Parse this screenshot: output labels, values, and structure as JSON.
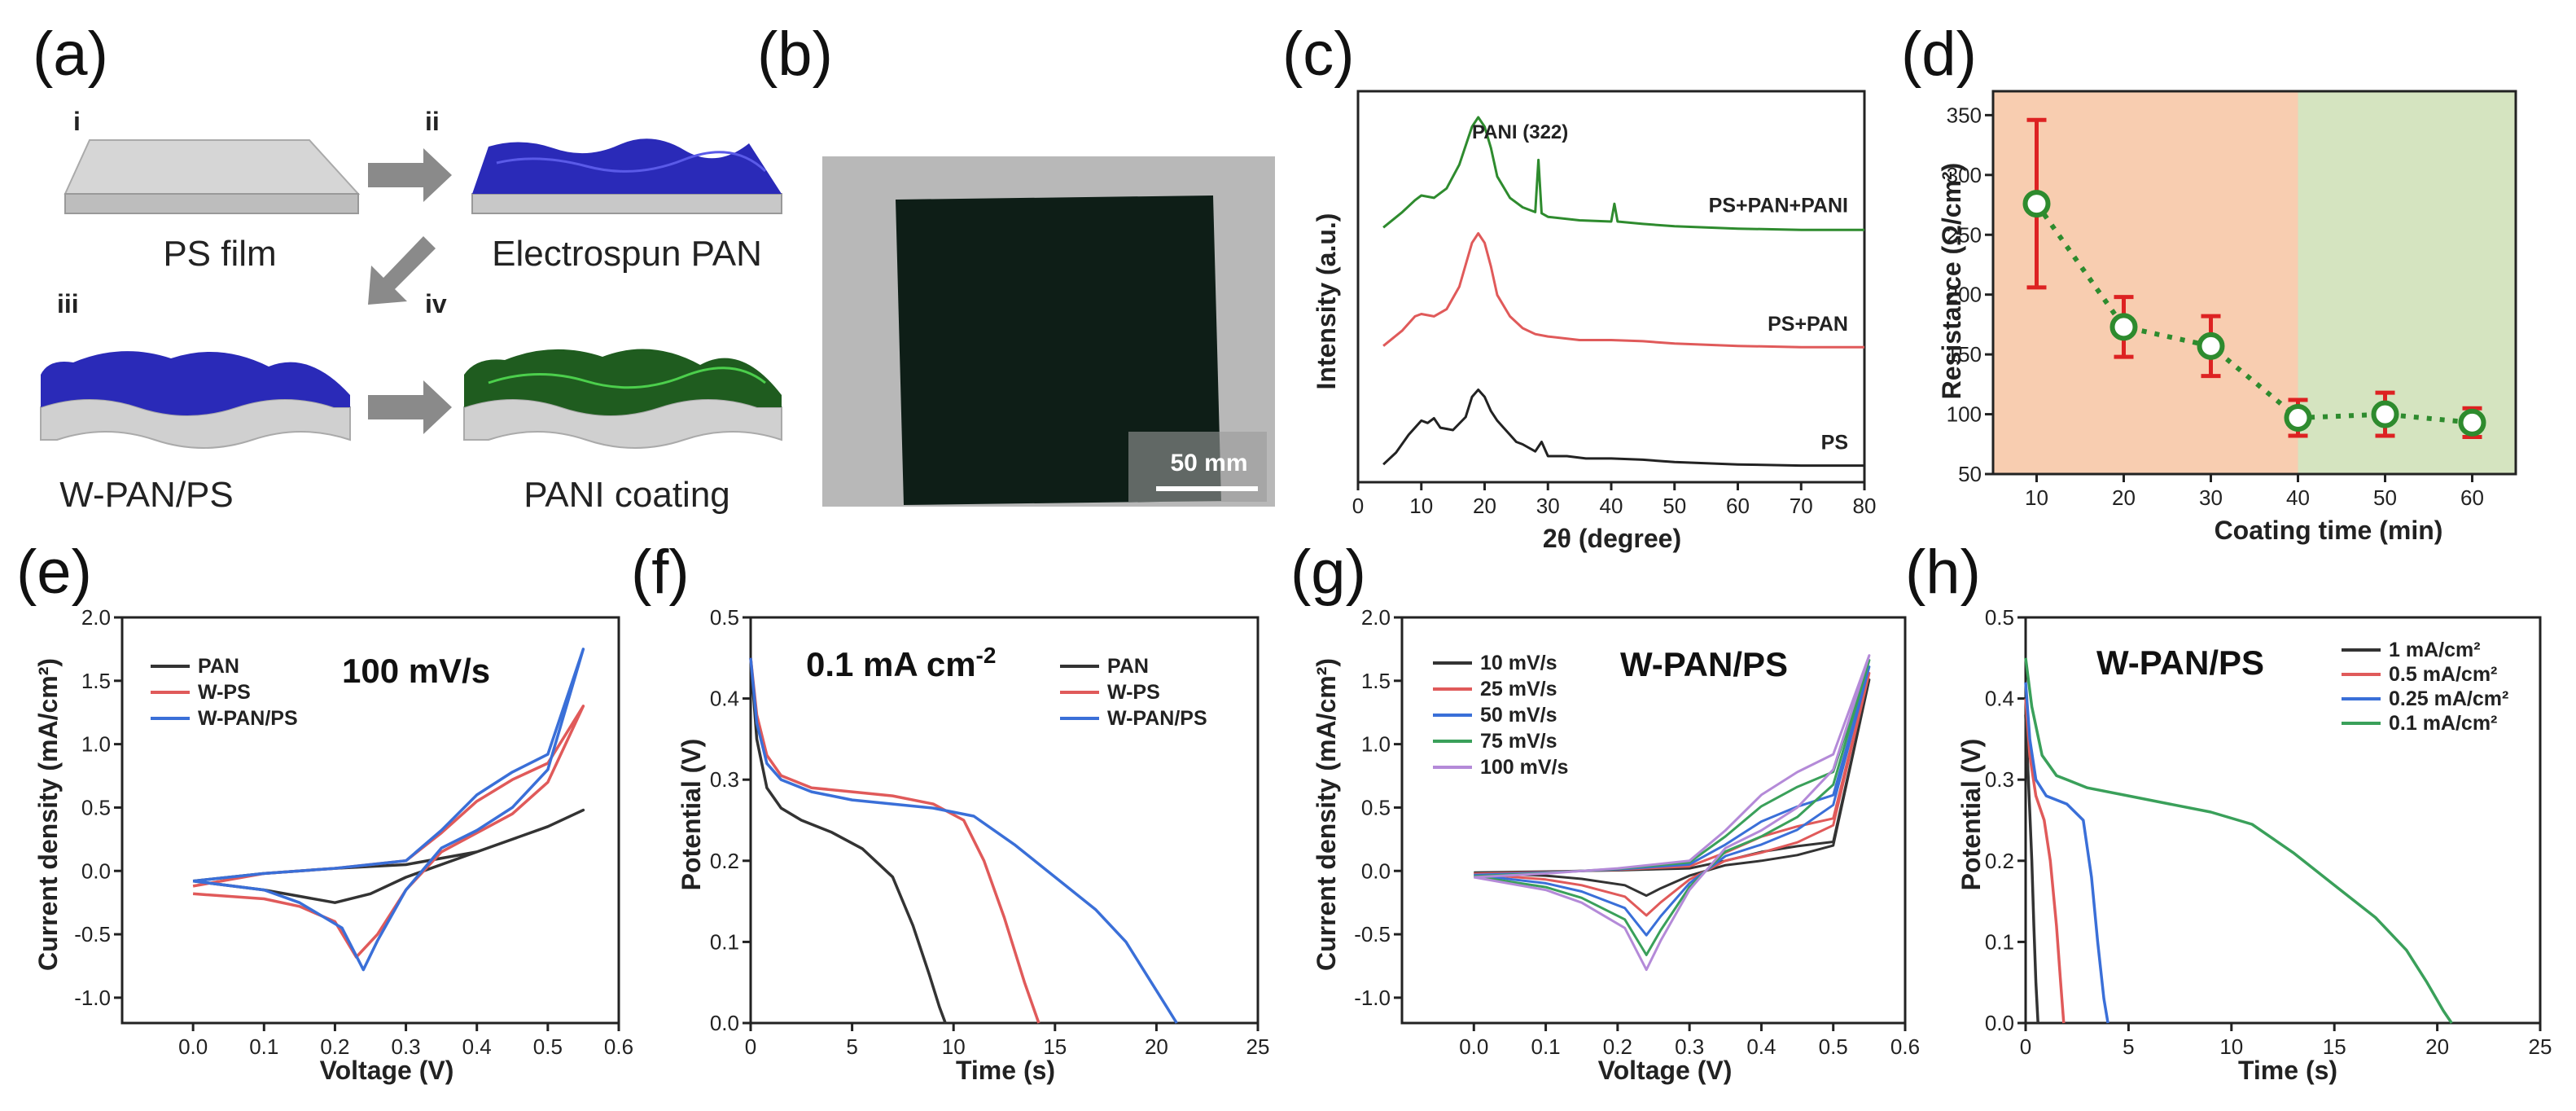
{
  "panels": {
    "a": {
      "label": "(a)",
      "steps": [
        "i",
        "ii",
        "iii",
        "iv"
      ],
      "captions": [
        "PS film",
        "Electrospun PAN",
        "W-PAN/PS",
        "PANI coating"
      ],
      "colors": {
        "film": "#c8c8c8",
        "pan": "#2a2ab8",
        "pani": "#1f5c1f"
      }
    },
    "b": {
      "label": "(b)",
      "scale_bar": "50 mm"
    },
    "c": {
      "label": "(c)",
      "annotation": "PANI (322)"
    },
    "d": {
      "label": "(d)"
    },
    "e": {
      "label": "(e)",
      "title": "100 mV/s"
    },
    "f": {
      "label": "(f)",
      "title": "0.1 mA cm",
      "title_sup": "-2"
    },
    "g": {
      "label": "(g)",
      "title": "W-PAN/PS"
    },
    "h": {
      "label": "(h)",
      "title": "W-PAN/PS"
    }
  },
  "chart_data": [
    {
      "id": "c",
      "type": "line",
      "xlabel": "2θ (degree)",
      "ylabel": "Intensity (a.u.)",
      "xlim": [
        0,
        80
      ],
      "xticks": [
        0,
        10,
        20,
        30,
        40,
        50,
        60,
        70,
        80
      ],
      "series": [
        {
          "name": "PS+PAN+PANI",
          "color": "#2e8b2e",
          "offset": 2.0,
          "x": [
            4,
            7,
            9,
            10,
            12,
            14,
            16,
            18,
            19,
            20,
            21,
            22,
            24,
            26,
            28,
            28.5,
            29,
            30,
            35,
            40,
            40.5,
            41,
            45,
            50,
            60,
            70,
            80
          ],
          "y": [
            0.05,
            0.18,
            0.28,
            0.32,
            0.3,
            0.38,
            0.58,
            0.9,
            0.98,
            0.9,
            0.72,
            0.48,
            0.3,
            0.22,
            0.18,
            0.62,
            0.17,
            0.14,
            0.11,
            0.1,
            0.25,
            0.1,
            0.08,
            0.06,
            0.04,
            0.03,
            0.03
          ]
        },
        {
          "name": "PS+PAN",
          "color": "#e05a5a",
          "offset": 1.0,
          "x": [
            4,
            7,
            9,
            10,
            12,
            14,
            16,
            18,
            19,
            20,
            21,
            22,
            24,
            26,
            28,
            30,
            35,
            40,
            45,
            50,
            60,
            70,
            80
          ],
          "y": [
            0.05,
            0.18,
            0.3,
            0.32,
            0.3,
            0.36,
            0.55,
            0.92,
            1.0,
            0.92,
            0.72,
            0.48,
            0.3,
            0.2,
            0.15,
            0.13,
            0.1,
            0.1,
            0.09,
            0.07,
            0.05,
            0.04,
            0.04
          ]
        },
        {
          "name": "PS",
          "color": "#222222",
          "offset": 0.0,
          "x": [
            4,
            6,
            8,
            10,
            11,
            12,
            13,
            15,
            17,
            18,
            19,
            20,
            21,
            22,
            23,
            24,
            25,
            26,
            28,
            29,
            30,
            33,
            36,
            40,
            45,
            50,
            60,
            70,
            80
          ],
          "y": [
            0.05,
            0.15,
            0.3,
            0.42,
            0.4,
            0.44,
            0.36,
            0.34,
            0.45,
            0.62,
            0.68,
            0.62,
            0.5,
            0.42,
            0.36,
            0.3,
            0.24,
            0.22,
            0.16,
            0.24,
            0.12,
            0.12,
            0.1,
            0.1,
            0.09,
            0.07,
            0.05,
            0.04,
            0.04
          ]
        }
      ]
    },
    {
      "id": "d",
      "type": "scatter",
      "xlabel": "Coating time (min)",
      "ylabel": "Resistance (Ω/cm²)",
      "xlim": [
        5,
        65
      ],
      "ylim": [
        50,
        370
      ],
      "xticks": [
        10,
        20,
        30,
        40,
        50,
        60
      ],
      "yticks": [
        50,
        100,
        150,
        200,
        250,
        300,
        350
      ],
      "x": [
        10,
        20,
        30,
        40,
        50,
        60
      ],
      "y": [
        276,
        173,
        157,
        97,
        100,
        93
      ],
      "err": [
        70,
        25,
        25,
        15,
        18,
        12
      ],
      "colors": {
        "marker": "#2e8b2e",
        "error": "#dd2222",
        "region1": "#f8cdb0",
        "region2": "#d5e4c0"
      },
      "region_split": 40
    },
    {
      "id": "e",
      "type": "line",
      "xlabel": "Voltage (V)",
      "ylabel": "Current density (mA/cm²)",
      "xlim": [
        -0.1,
        0.6
      ],
      "ylim": [
        -1.2,
        2.0
      ],
      "xticks": [
        0.0,
        0.1,
        0.2,
        0.3,
        0.4,
        0.5,
        0.6
      ],
      "yticks": [
        -1.0,
        -0.5,
        0.0,
        0.5,
        1.0,
        1.5,
        2.0
      ],
      "series": [
        {
          "name": "PAN",
          "color": "#333333",
          "x": [
            0.0,
            0.1,
            0.2,
            0.3,
            0.4,
            0.5,
            0.55,
            0.5,
            0.4,
            0.3,
            0.25,
            0.2,
            0.15,
            0.1,
            0.0
          ],
          "y": [
            -0.08,
            -0.02,
            0.02,
            0.05,
            0.15,
            0.35,
            0.48,
            0.35,
            0.15,
            -0.05,
            -0.18,
            -0.25,
            -0.2,
            -0.15,
            -0.08
          ]
        },
        {
          "name": "W-PS",
          "color": "#e05a5a",
          "x": [
            0.0,
            0.1,
            0.2,
            0.3,
            0.35,
            0.4,
            0.45,
            0.5,
            0.55,
            0.5,
            0.45,
            0.4,
            0.35,
            0.3,
            0.26,
            0.23,
            0.2,
            0.15,
            0.1,
            0.0
          ],
          "y": [
            -0.12,
            -0.02,
            0.02,
            0.08,
            0.3,
            0.55,
            0.72,
            0.85,
            1.3,
            0.7,
            0.45,
            0.3,
            0.15,
            -0.15,
            -0.5,
            -0.68,
            -0.4,
            -0.28,
            -0.22,
            -0.18
          ]
        },
        {
          "name": "W-PAN/PS",
          "color": "#3a6fd8",
          "x": [
            0.0,
            0.1,
            0.2,
            0.3,
            0.35,
            0.4,
            0.45,
            0.5,
            0.55,
            0.5,
            0.45,
            0.4,
            0.35,
            0.3,
            0.26,
            0.24,
            0.21,
            0.15,
            0.1,
            0.0
          ],
          "y": [
            -0.08,
            -0.02,
            0.02,
            0.08,
            0.32,
            0.6,
            0.78,
            0.92,
            1.75,
            0.8,
            0.5,
            0.32,
            0.18,
            -0.15,
            -0.55,
            -0.78,
            -0.45,
            -0.25,
            -0.15,
            -0.08
          ]
        }
      ]
    },
    {
      "id": "f",
      "type": "line",
      "xlabel": "Time (s)",
      "ylabel": "Potential (V)",
      "xlim": [
        0,
        25
      ],
      "ylim": [
        0,
        0.5
      ],
      "xticks": [
        0,
        5,
        10,
        15,
        20,
        25
      ],
      "yticks": [
        0.0,
        0.1,
        0.2,
        0.3,
        0.4,
        0.5
      ],
      "series": [
        {
          "name": "PAN",
          "color": "#333333",
          "x": [
            0.0,
            0.3,
            0.8,
            1.5,
            2.5,
            4,
            5.5,
            7,
            8,
            8.8,
            9.3,
            9.6
          ],
          "y": [
            0.45,
            0.35,
            0.29,
            0.265,
            0.25,
            0.235,
            0.215,
            0.18,
            0.12,
            0.06,
            0.02,
            0.0
          ]
        },
        {
          "name": "W-PS",
          "color": "#e05a5a",
          "x": [
            0.0,
            0.3,
            0.8,
            1.5,
            3,
            5,
            7,
            9,
            10.5,
            11.5,
            12.5,
            13.5,
            14.2
          ],
          "y": [
            0.45,
            0.38,
            0.33,
            0.305,
            0.29,
            0.285,
            0.28,
            0.27,
            0.25,
            0.2,
            0.13,
            0.05,
            0.0
          ]
        },
        {
          "name": "W-PAN/PS",
          "color": "#3a6fd8",
          "x": [
            0.0,
            0.3,
            0.8,
            1.5,
            3,
            5,
            7,
            9,
            11,
            13,
            15,
            17,
            18.5,
            19.5,
            20.5,
            21.0
          ],
          "y": [
            0.45,
            0.37,
            0.32,
            0.3,
            0.285,
            0.275,
            0.27,
            0.265,
            0.255,
            0.22,
            0.18,
            0.14,
            0.1,
            0.06,
            0.02,
            0.0
          ]
        }
      ]
    },
    {
      "id": "g",
      "type": "line",
      "xlabel": "Voltage (V)",
      "ylabel": "Current density (mA/cm²)",
      "xlim": [
        -0.1,
        0.6
      ],
      "ylim": [
        -1.2,
        2.0
      ],
      "xticks": [
        0.0,
        0.1,
        0.2,
        0.3,
        0.4,
        0.5,
        0.6
      ],
      "yticks": [
        -1.0,
        -0.5,
        0.0,
        0.5,
        1.0,
        1.5,
        2.0
      ],
      "series": [
        {
          "name": "10 mV/s",
          "color": "#333333",
          "scale": 0.25
        },
        {
          "name": "25 mV/s",
          "color": "#e05a5a",
          "scale": 0.45
        },
        {
          "name": "50 mV/s",
          "color": "#3a6fd8",
          "scale": 0.65
        },
        {
          "name": "75 mV/s",
          "color": "#3aa05a",
          "scale": 0.85
        },
        {
          "name": "100 mV/s",
          "color": "#b48ad8",
          "scale": 1.0
        }
      ],
      "base_x": [
        0.0,
        0.1,
        0.2,
        0.3,
        0.35,
        0.4,
        0.45,
        0.5,
        0.55,
        0.5,
        0.45,
        0.4,
        0.35,
        0.3,
        0.26,
        0.24,
        0.21,
        0.15,
        0.1,
        0.0
      ],
      "base_y": [
        -0.05,
        -0.02,
        0.02,
        0.08,
        0.32,
        0.6,
        0.78,
        0.92,
        1.7,
        0.8,
        0.5,
        0.32,
        0.18,
        -0.15,
        -0.55,
        -0.78,
        -0.45,
        -0.25,
        -0.15,
        -0.05
      ]
    },
    {
      "id": "h",
      "type": "line",
      "xlabel": "Time (s)",
      "ylabel": "Potential (V)",
      "xlim": [
        0,
        25
      ],
      "ylim": [
        0,
        0.5
      ],
      "xticks": [
        0,
        5,
        10,
        15,
        20,
        25
      ],
      "yticks": [
        0.0,
        0.1,
        0.2,
        0.3,
        0.4,
        0.5
      ],
      "series": [
        {
          "name": "1 mA/cm²",
          "color": "#333333",
          "x": [
            0.0,
            0.1,
            0.2,
            0.3,
            0.4,
            0.5,
            0.6
          ],
          "y": [
            0.38,
            0.32,
            0.26,
            0.2,
            0.12,
            0.05,
            0.0
          ]
        },
        {
          "name": "0.5 mA/cm²",
          "color": "#e05a5a",
          "x": [
            0.0,
            0.2,
            0.5,
            0.9,
            1.2,
            1.5,
            1.7,
            1.85
          ],
          "y": [
            0.4,
            0.33,
            0.28,
            0.25,
            0.2,
            0.12,
            0.05,
            0.0
          ]
        },
        {
          "name": "0.25 mA/cm²",
          "color": "#3a6fd8",
          "x": [
            0.0,
            0.2,
            0.5,
            1.0,
            2.0,
            2.8,
            3.2,
            3.5,
            3.8,
            4.0
          ],
          "y": [
            0.42,
            0.35,
            0.3,
            0.28,
            0.27,
            0.25,
            0.18,
            0.1,
            0.03,
            0.0
          ]
        },
        {
          "name": "0.1 mA/cm²",
          "color": "#3aa05a",
          "x": [
            0.0,
            0.3,
            0.8,
            1.5,
            3,
            5,
            7,
            9,
            11,
            13,
            15,
            17,
            18.5,
            19.5,
            20.3,
            20.7
          ],
          "y": [
            0.45,
            0.39,
            0.33,
            0.305,
            0.29,
            0.28,
            0.27,
            0.26,
            0.245,
            0.21,
            0.17,
            0.13,
            0.09,
            0.05,
            0.015,
            0.0
          ]
        }
      ]
    }
  ]
}
